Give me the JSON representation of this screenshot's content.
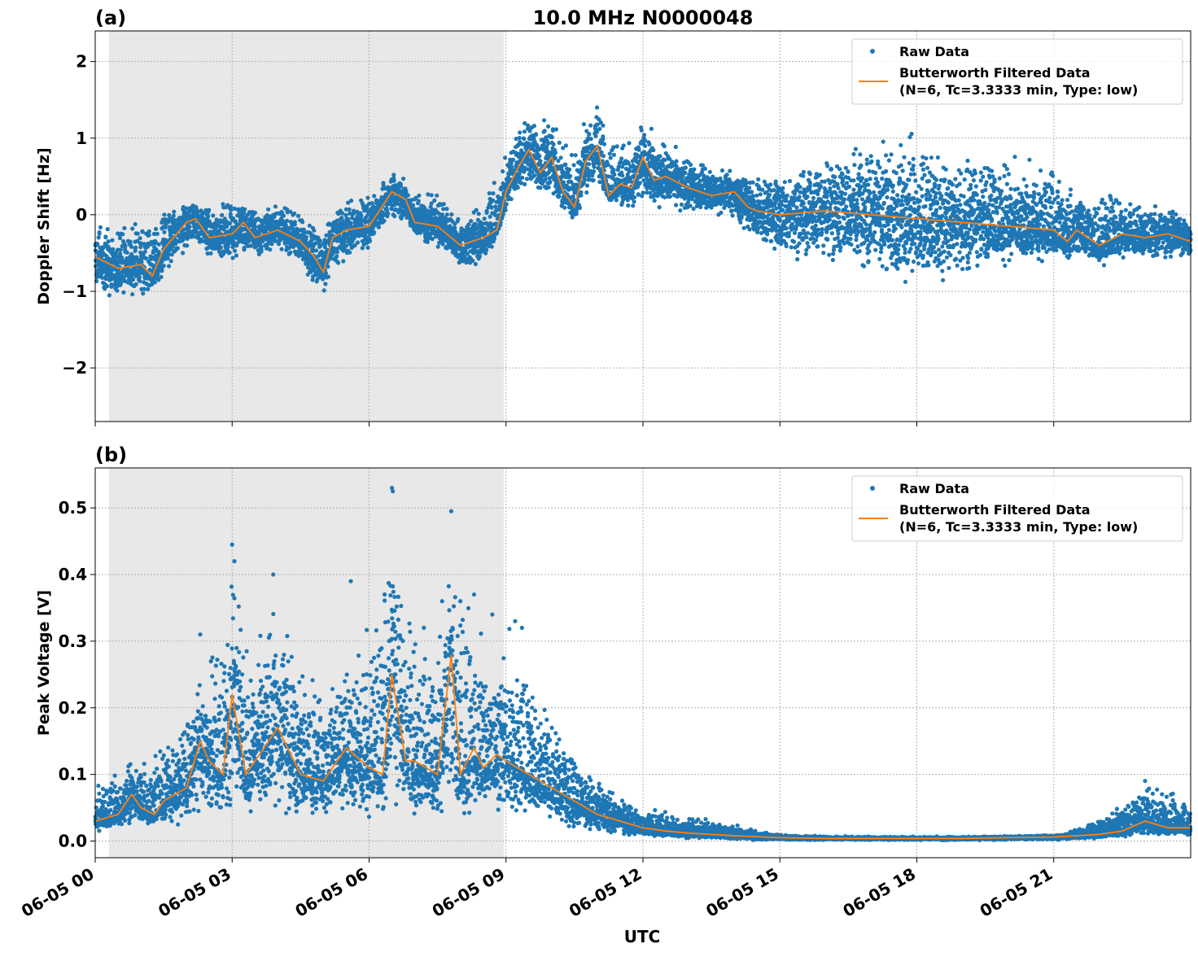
{
  "figure": {
    "title": "10.0 MHz N0000048",
    "xlabel": "UTC",
    "colors": {
      "raw": "#1f77b4",
      "filtered": "#ff7f0e",
      "night_shade": "#e8e8e8"
    }
  },
  "chart_data": [
    {
      "panel": "(a)",
      "type": "scatter",
      "ylabel": "Doppler Shift [Hz]",
      "ylim": [
        -2.7,
        2.4
      ],
      "yticks": [
        -2,
        -1,
        0,
        1,
        2
      ],
      "ytick_labels": [
        "−2",
        "−1",
        "0",
        "1",
        "2"
      ],
      "xlim_hours": [
        0,
        24
      ],
      "xticks_hours": [
        0,
        3,
        6,
        9,
        12,
        15,
        18,
        21
      ],
      "shaded_interval_hours": [
        0.3,
        8.95
      ],
      "grid": true,
      "legend": {
        "placement": "top-right",
        "entries": [
          "Raw Data",
          "Butterworth Filtered Data",
          "(N=6, Tc=3.3333 min, Type: low)"
        ]
      },
      "series": [
        {
          "name": "Butterworth Filtered Data",
          "kind": "line",
          "x_hours": [
            0,
            0.5,
            1,
            1.25,
            1.5,
            2,
            2.2,
            2.5,
            3,
            3.25,
            3.5,
            4,
            4.5,
            4.8,
            5,
            5.2,
            5.5,
            6,
            6.5,
            6.8,
            7,
            7.5,
            8,
            8.5,
            8.8,
            9,
            9.25,
            9.5,
            9.75,
            10,
            10.25,
            10.5,
            10.75,
            11,
            11.25,
            11.5,
            11.75,
            12,
            12.25,
            12.5,
            13,
            13.5,
            14,
            14.3,
            14.5,
            15,
            16,
            17,
            18,
            19,
            20,
            21,
            21.3,
            21.5,
            22,
            22.5,
            23,
            23.5,
            24
          ],
          "y": [
            -0.55,
            -0.7,
            -0.65,
            -0.8,
            -0.45,
            -0.1,
            -0.05,
            -0.3,
            -0.25,
            -0.1,
            -0.3,
            -0.2,
            -0.35,
            -0.55,
            -0.75,
            -0.3,
            -0.2,
            -0.15,
            0.3,
            0.2,
            -0.1,
            -0.15,
            -0.4,
            -0.3,
            -0.2,
            0.3,
            0.6,
            0.85,
            0.55,
            0.75,
            0.3,
            0.1,
            0.7,
            0.9,
            0.25,
            0.4,
            0.35,
            0.75,
            0.45,
            0.5,
            0.35,
            0.25,
            0.3,
            0.1,
            0.05,
            0.0,
            0.05,
            0.0,
            -0.05,
            -0.1,
            -0.15,
            -0.2,
            -0.35,
            -0.2,
            -0.4,
            -0.25,
            -0.3,
            -0.25,
            -0.35
          ]
        },
        {
          "name": "Raw Data",
          "kind": "scatter",
          "x_hours": [
            0,
            0.5,
            1,
            1.5,
            2,
            2.5,
            3,
            3.5,
            4,
            4.5,
            5,
            5.5,
            6,
            6.5,
            7,
            7.5,
            8,
            8.5,
            9,
            9.5,
            10,
            10.5,
            11,
            11.5,
            12,
            12.5,
            13,
            13.5,
            14,
            14.5,
            15,
            15.5,
            16,
            16.5,
            17,
            17.5,
            18,
            18.5,
            19,
            19.5,
            20,
            20.5,
            21,
            21.5,
            22,
            22.5,
            23,
            23.5,
            24
          ],
          "y_low": [
            -1.1,
            -1.1,
            -1.1,
            -0.9,
            -0.5,
            -0.6,
            -0.6,
            -0.6,
            -0.5,
            -0.7,
            -1.1,
            -0.6,
            -0.5,
            -0.1,
            -0.3,
            -0.5,
            -0.8,
            -0.7,
            0.0,
            0.3,
            0.2,
            -0.2,
            0.3,
            0.0,
            0.1,
            0.0,
            0.0,
            0.0,
            -0.1,
            -0.5,
            -0.6,
            -0.7,
            -0.7,
            -0.8,
            -0.9,
            -1.0,
            -1.1,
            -1.0,
            -0.9,
            -0.8,
            -0.7,
            -0.7,
            -0.6,
            -0.7,
            -0.7,
            -0.6,
            -0.6,
            -0.6,
            -0.6
          ],
          "y_high": [
            0.0,
            -0.1,
            0.0,
            0.1,
            0.25,
            0.15,
            0.25,
            0.2,
            0.2,
            0.1,
            0.0,
            0.25,
            0.3,
            0.6,
            0.45,
            0.35,
            0.1,
            0.2,
            0.8,
            1.4,
            1.3,
            1.0,
            1.6,
            1.0,
            1.3,
            1.0,
            0.8,
            0.7,
            0.6,
            0.6,
            0.7,
            0.8,
            0.9,
            1.0,
            1.1,
            1.2,
            1.2,
            1.1,
            1.0,
            1.0,
            0.9,
            0.8,
            0.8,
            0.3,
            0.4,
            0.3,
            0.2,
            0.2,
            0.0
          ]
        }
      ]
    },
    {
      "panel": "(b)",
      "type": "scatter",
      "ylabel": "Peak Voltage [V]",
      "ylim": [
        -0.025,
        0.56
      ],
      "yticks": [
        0.0,
        0.1,
        0.2,
        0.3,
        0.4,
        0.5
      ],
      "ytick_labels": [
        "0.0",
        "0.1",
        "0.2",
        "0.3",
        "0.4",
        "0.5"
      ],
      "xlim_hours": [
        0,
        24
      ],
      "xticks_hours": [
        0,
        3,
        6,
        9,
        12,
        15,
        18,
        21
      ],
      "xtick_labels": [
        "06-05 00",
        "06-05 03",
        "06-05 06",
        "06-05 09",
        "06-05 12",
        "06-05 15",
        "06-05 18",
        "06-05 21"
      ],
      "shaded_interval_hours": [
        0.3,
        8.95
      ],
      "grid": true,
      "legend": {
        "placement": "top-right",
        "entries": [
          "Raw Data",
          "Butterworth Filtered Data",
          "(N=6, Tc=3.3333 min, Type: low)"
        ]
      },
      "series": [
        {
          "name": "Butterworth Filtered Data",
          "kind": "line",
          "x_hours": [
            0,
            0.5,
            0.8,
            1,
            1.3,
            1.5,
            2,
            2.3,
            2.5,
            2.8,
            3.0,
            3.3,
            3.5,
            4,
            4.5,
            5,
            5.3,
            5.5,
            6,
            6.3,
            6.5,
            6.8,
            7,
            7.5,
            7.8,
            8,
            8.3,
            8.5,
            8.8,
            9,
            9.5,
            10,
            10.5,
            11,
            11.5,
            12,
            12.5,
            13,
            13.5,
            14,
            15,
            16,
            17,
            18,
            19,
            20,
            21,
            21.5,
            22,
            22.5,
            23,
            23.5,
            24
          ],
          "y": [
            0.03,
            0.04,
            0.07,
            0.05,
            0.04,
            0.06,
            0.08,
            0.15,
            0.12,
            0.1,
            0.22,
            0.1,
            0.12,
            0.17,
            0.1,
            0.09,
            0.12,
            0.14,
            0.11,
            0.1,
            0.25,
            0.12,
            0.12,
            0.1,
            0.28,
            0.1,
            0.14,
            0.11,
            0.13,
            0.12,
            0.1,
            0.08,
            0.06,
            0.04,
            0.03,
            0.02,
            0.015,
            0.012,
            0.01,
            0.008,
            0.005,
            0.004,
            0.004,
            0.004,
            0.004,
            0.005,
            0.006,
            0.008,
            0.01,
            0.015,
            0.03,
            0.02,
            0.02
          ]
        },
        {
          "name": "Raw Data",
          "kind": "scatter",
          "x_hours": [
            0,
            0.5,
            1,
            1.5,
            2,
            2.5,
            3,
            3.5,
            4,
            4.5,
            5,
            5.5,
            6,
            6.5,
            7,
            7.5,
            8,
            8.5,
            9,
            9.5,
            10,
            10.5,
            11,
            11.5,
            12,
            12.5,
            13,
            13.5,
            14,
            14.5,
            15,
            16,
            17,
            18,
            19,
            20,
            21,
            21.5,
            22,
            22.5,
            23,
            23.5,
            24
          ],
          "y_low": [
            0.01,
            0.015,
            0.02,
            0.02,
            0.025,
            0.03,
            0.03,
            0.03,
            0.03,
            0.03,
            0.03,
            0.03,
            0.03,
            0.03,
            0.03,
            0.03,
            0.03,
            0.03,
            0.03,
            0.03,
            0.02,
            0.015,
            0.01,
            0.005,
            0.005,
            0.003,
            0.003,
            0.002,
            0.002,
            0.001,
            0.001,
            0.001,
            0.001,
            0.001,
            0.001,
            0.001,
            0.001,
            0.002,
            0.003,
            0.004,
            0.005,
            0.004,
            0.004
          ],
          "y_high": [
            0.08,
            0.12,
            0.14,
            0.16,
            0.2,
            0.3,
            0.44,
            0.3,
            0.4,
            0.3,
            0.25,
            0.3,
            0.35,
            0.53,
            0.35,
            0.3,
            0.5,
            0.33,
            0.33,
            0.3,
            0.2,
            0.15,
            0.1,
            0.07,
            0.06,
            0.05,
            0.04,
            0.035,
            0.03,
            0.015,
            0.01,
            0.008,
            0.007,
            0.007,
            0.007,
            0.008,
            0.01,
            0.02,
            0.04,
            0.06,
            0.1,
            0.08,
            0.07
          ]
        }
      ],
      "outliers": {
        "x_hours": [
          2.3,
          3.0,
          3.05,
          3.9,
          5.6,
          6.5,
          6.52,
          7.2,
          7.6,
          7.8,
          8.0,
          8.3,
          8.7,
          9.2,
          9.35
        ],
        "y": [
          0.31,
          0.445,
          0.42,
          0.4,
          0.39,
          0.53,
          0.525,
          0.32,
          0.36,
          0.495,
          0.36,
          0.37,
          0.34,
          0.33,
          0.32
        ]
      }
    }
  ]
}
